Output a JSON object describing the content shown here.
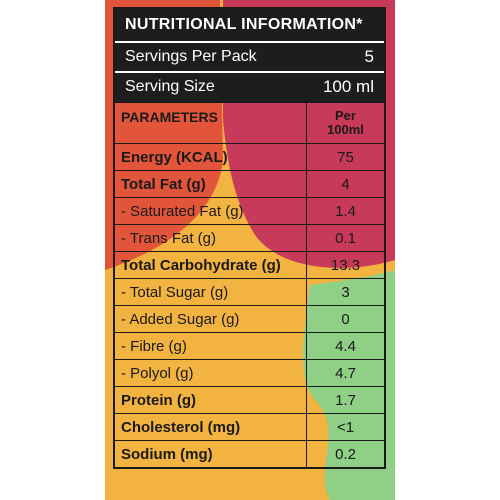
{
  "panel": {
    "title": "NUTRITIONAL INFORMATION*",
    "servings_label": "Servings Per Pack",
    "servings_value": "5",
    "serving_size_label": "Serving Size",
    "serving_size_value": "100 ml"
  },
  "table": {
    "col_param": "PARAMETERS",
    "col_per_line1": "Per",
    "col_per_line2": "100ml",
    "rows": [
      {
        "name": "Energy (KCAL)",
        "value": "75"
      },
      {
        "name": "Total Fat (g)",
        "value": "4"
      },
      {
        "name": "- Saturated Fat (g)",
        "value": "1.4"
      },
      {
        "name": "- Trans Fat (g)",
        "value": "0.1"
      },
      {
        "name": "Total Carbohydrate (g)",
        "value": "13.3"
      },
      {
        "name": "- Total Sugar (g)",
        "value": "3"
      },
      {
        "name": "- Added Sugar (g)",
        "value": "0"
      },
      {
        "name": "- Fibre (g)",
        "value": "4.4"
      },
      {
        "name": "- Polyol (g)",
        "value": "4.7"
      },
      {
        "name": "Protein (g)",
        "value": "1.7"
      },
      {
        "name": "Cholesterol (mg)",
        "value": "<1"
      },
      {
        "name": "Sodium (mg)",
        "value": "0.2"
      }
    ]
  },
  "colors": {
    "orange": "#f3b341",
    "red_orange": "#e2553a",
    "crimson": "#c83a5a",
    "green": "#8fcf86",
    "dark": "#1d1d1d"
  }
}
